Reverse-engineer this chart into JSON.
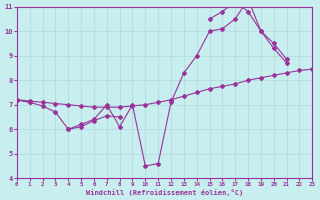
{
  "background_color": "#c8eef0",
  "line_color": "#993399",
  "grid_color": "#b0d8da",
  "xlabel": "Windchill (Refroidissement éolien,°C)",
  "xlim": [
    0,
    23
  ],
  "ylim": [
    4,
    11
  ],
  "yticks": [
    4,
    5,
    6,
    7,
    8,
    9,
    10,
    11
  ],
  "xticks": [
    0,
    1,
    2,
    3,
    4,
    5,
    6,
    7,
    8,
    9,
    10,
    11,
    12,
    13,
    14,
    15,
    16,
    17,
    18,
    19,
    20,
    21,
    22,
    23
  ],
  "line1": {
    "x": [
      0,
      1,
      2,
      3,
      4,
      5,
      6,
      7,
      8,
      9,
      10,
      11,
      12,
      13,
      14,
      15,
      16,
      17,
      18,
      19,
      20,
      21,
      22,
      23
    ],
    "y": [
      7.2,
      7.15,
      7.1,
      7.05,
      7.0,
      6.95,
      6.9,
      6.9,
      6.9,
      6.95,
      7.0,
      7.1,
      7.2,
      7.35,
      7.5,
      7.65,
      7.75,
      7.85,
      8.0,
      8.1,
      8.2,
      8.3,
      8.4,
      8.45
    ]
  },
  "line2": {
    "x": [
      0,
      1,
      2,
      3,
      4,
      5,
      6,
      7,
      8,
      9,
      10,
      11,
      12,
      13,
      14,
      15,
      16,
      17,
      18,
      19,
      20,
      21,
      22,
      23
    ],
    "y": [
      7.2,
      7.1,
      null,
      null,
      6.0,
      6.1,
      6.35,
      6.55,
      6.5,
      null,
      null,
      null,
      null,
      null,
      null,
      10.5,
      10.8,
      11.2,
      10.8,
      10.0,
      9.5,
      8.85,
      null,
      null
    ]
  },
  "line3": {
    "x": [
      0,
      1,
      2,
      3,
      4,
      5,
      6,
      7,
      8,
      9,
      10,
      11,
      12,
      13,
      14,
      15,
      16,
      17,
      18,
      19,
      20,
      21,
      22,
      23
    ],
    "y": [
      7.2,
      7.1,
      6.95,
      6.7,
      6.0,
      6.2,
      6.4,
      7.0,
      6.1,
      7.0,
      4.5,
      4.6,
      7.1,
      8.3,
      9.0,
      10.0,
      10.1,
      10.5,
      11.3,
      10.0,
      9.3,
      8.7,
      null,
      null
    ]
  }
}
